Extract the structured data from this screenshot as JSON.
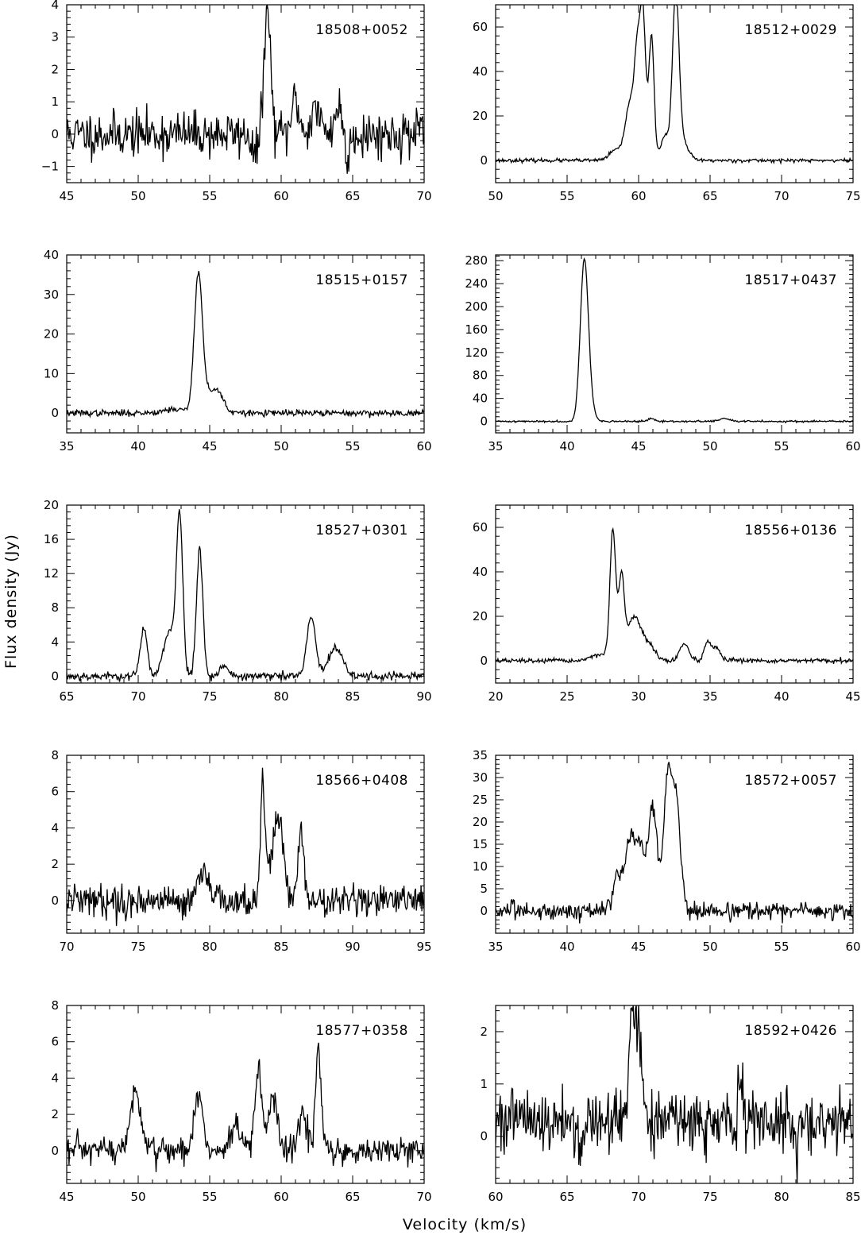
{
  "figure": {
    "xlabel": "Velocity (km/s)",
    "ylabel": "Flux density (Jy)"
  },
  "chart_data": [
    {
      "type": "line",
      "title": "18508+0052",
      "xlim": [
        45,
        70
      ],
      "ylim": [
        -1.5,
        4
      ],
      "xticks": [
        45,
        50,
        55,
        60,
        65,
        70
      ],
      "yticks": [
        -1,
        0,
        1,
        2,
        3,
        4
      ],
      "baseline": 0,
      "noise": 0.35,
      "seed": 11,
      "peaks": [
        [
          58.9,
          0.6,
          0.25
        ],
        [
          59.05,
          3.3,
          0.22
        ],
        [
          61.0,
          1.1,
          0.25
        ],
        [
          62.4,
          0.8,
          0.3
        ],
        [
          64.0,
          0.8,
          0.3
        ],
        [
          58.2,
          -0.7,
          0.2
        ],
        [
          64.6,
          -0.9,
          0.15
        ]
      ]
    },
    {
      "type": "line",
      "title": "18512+0029",
      "xlim": [
        50,
        75
      ],
      "ylim": [
        -10,
        70
      ],
      "xticks": [
        50,
        55,
        60,
        65,
        70,
        75
      ],
      "yticks": [
        0,
        20,
        40,
        60
      ],
      "baseline": 0,
      "noise": 0.4,
      "seed": 23,
      "peaks": [
        [
          58.5,
          5,
          0.5
        ],
        [
          59.4,
          25,
          0.3
        ],
        [
          59.9,
          43,
          0.2
        ],
        [
          60.3,
          65,
          0.2
        ],
        [
          60.9,
          56,
          0.18
        ],
        [
          61.8,
          9,
          0.3
        ],
        [
          62.6,
          66,
          0.22
        ],
        [
          62.8,
          12,
          0.5
        ]
      ]
    },
    {
      "type": "line",
      "title": "18515+0157",
      "xlim": [
        35,
        60
      ],
      "ylim": [
        -5,
        40
      ],
      "xticks": [
        35,
        40,
        45,
        50,
        55,
        60
      ],
      "yticks": [
        0,
        10,
        20,
        30,
        40
      ],
      "baseline": 0,
      "noise": 0.4,
      "seed": 37,
      "peaks": [
        [
          44.2,
          34,
          0.28
        ],
        [
          44.9,
          5,
          0.5
        ],
        [
          45.7,
          4,
          0.35
        ],
        [
          42.5,
          1,
          0.8
        ]
      ]
    },
    {
      "type": "line",
      "title": "18517+0437",
      "xlim": [
        35,
        60
      ],
      "ylim": [
        -20,
        290
      ],
      "xticks": [
        35,
        40,
        45,
        50,
        55,
        60
      ],
      "yticks": [
        0,
        40,
        80,
        120,
        160,
        200,
        240,
        280
      ],
      "baseline": 0,
      "noise": 0.8,
      "seed": 41,
      "peaks": [
        [
          41.2,
          276,
          0.28
        ],
        [
          41.6,
          20,
          0.3
        ],
        [
          45.9,
          5,
          0.2
        ],
        [
          51.0,
          5,
          0.35
        ]
      ]
    },
    {
      "type": "line",
      "title": "18527+0301",
      "xlim": [
        65,
        90
      ],
      "ylim": [
        -0.8,
        20
      ],
      "xticks": [
        65,
        70,
        75,
        80,
        85,
        90
      ],
      "yticks": [
        0,
        4,
        8,
        12,
        16,
        20
      ],
      "baseline": 0,
      "noise": 0.25,
      "seed": 53,
      "peaks": [
        [
          70.4,
          5.5,
          0.25
        ],
        [
          71.9,
          3,
          0.3
        ],
        [
          72.4,
          4,
          0.3
        ],
        [
          72.9,
          18.5,
          0.22
        ],
        [
          74.3,
          15,
          0.22
        ],
        [
          76.0,
          1.2,
          0.3
        ],
        [
          82.1,
          7,
          0.3
        ],
        [
          83.8,
          3.2,
          0.5
        ]
      ]
    },
    {
      "type": "line",
      "title": "18556+0136",
      "xlim": [
        20,
        45
      ],
      "ylim": [
        -10,
        70
      ],
      "xticks": [
        20,
        25,
        30,
        35,
        40,
        45
      ],
      "yticks": [
        0,
        20,
        40,
        60
      ],
      "baseline": 0,
      "noise": 0.5,
      "seed": 67,
      "peaks": [
        [
          28.2,
          58,
          0.2
        ],
        [
          28.8,
          35,
          0.2
        ],
        [
          29.7,
          20,
          0.5
        ],
        [
          30.8,
          6,
          0.4
        ],
        [
          27.3,
          3,
          0.6
        ],
        [
          33.2,
          8,
          0.3
        ],
        [
          34.8,
          8,
          0.2
        ],
        [
          35.4,
          6,
          0.3
        ]
      ]
    },
    {
      "type": "line",
      "title": "18566+0408",
      "xlim": [
        70,
        95
      ],
      "ylim": [
        -1.8,
        8
      ],
      "xticks": [
        70,
        75,
        80,
        85,
        90,
        95
      ],
      "yticks": [
        0,
        2,
        4,
        6,
        8
      ],
      "baseline": 0,
      "noise": 0.45,
      "seed": 79,
      "peaks": [
        [
          79.6,
          2.0,
          0.3
        ],
        [
          83.7,
          6.5,
          0.15
        ],
        [
          84.2,
          2.0,
          0.3
        ],
        [
          84.7,
          3.7,
          0.2
        ],
        [
          85.1,
          3.0,
          0.2
        ],
        [
          86.4,
          3.8,
          0.2
        ]
      ]
    },
    {
      "type": "line",
      "title": "18572+0057",
      "xlim": [
        35,
        60
      ],
      "ylim": [
        -5,
        35
      ],
      "xticks": [
        35,
        40,
        45,
        50,
        55,
        60
      ],
      "yticks": [
        0,
        5,
        10,
        15,
        20,
        25,
        30,
        35
      ],
      "baseline": 0,
      "noise": 1.0,
      "seed": 83,
      "peaks": [
        [
          43.5,
          6,
          0.3
        ],
        [
          44.4,
          12,
          0.3
        ],
        [
          45.1,
          11,
          0.3
        ],
        [
          46.0,
          22,
          0.3
        ],
        [
          47.0,
          28,
          0.25
        ],
        [
          47.6,
          27,
          0.3
        ],
        [
          44.8,
          4,
          1.0
        ]
      ]
    },
    {
      "type": "line",
      "title": "18577+0358",
      "xlim": [
        45,
        70
      ],
      "ylim": [
        -1.8,
        8
      ],
      "xticks": [
        45,
        50,
        55,
        60,
        65,
        70
      ],
      "yticks": [
        0,
        2,
        4,
        6,
        8
      ],
      "baseline": 0,
      "noise": 0.4,
      "seed": 97,
      "peaks": [
        [
          49.8,
          3.3,
          0.35
        ],
        [
          54.2,
          3.2,
          0.3
        ],
        [
          56.8,
          1.5,
          0.3
        ],
        [
          58.4,
          4.3,
          0.25
        ],
        [
          59.4,
          2.8,
          0.3
        ],
        [
          61.5,
          2.0,
          0.3
        ],
        [
          62.6,
          5.4,
          0.2
        ]
      ]
    },
    {
      "type": "line",
      "title": "18592+0426",
      "xlim": [
        60,
        85
      ],
      "ylim": [
        -0.9,
        2.5
      ],
      "xticks": [
        60,
        65,
        70,
        75,
        80,
        85
      ],
      "yticks": [
        0,
        1,
        2
      ],
      "baseline": 0.3,
      "noise": 0.3,
      "seed": 101,
      "peaks": [
        [
          69.5,
          1.9,
          0.18
        ],
        [
          70.0,
          1.4,
          0.3
        ],
        [
          77.1,
          1.0,
          0.15
        ],
        [
          65.9,
          -0.9,
          0.12
        ],
        [
          81.0,
          -0.6,
          0.2
        ]
      ]
    }
  ]
}
